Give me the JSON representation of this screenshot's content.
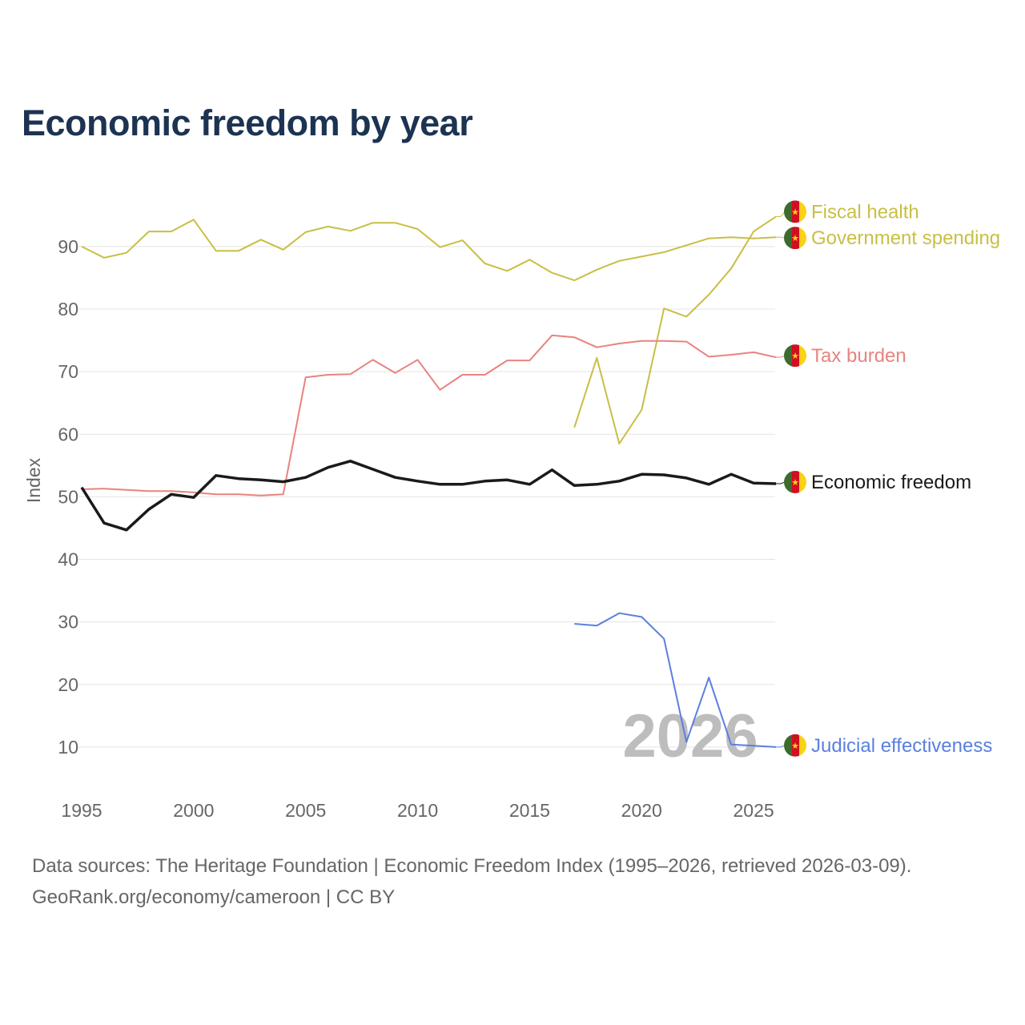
{
  "title": "Economic freedom by year",
  "watermark_year": "2026",
  "sources_line1": "Data sources: The Heritage Foundation | Economic Freedom Index (1995–2026, retrieved 2026-03-09).",
  "sources_line2": "GeoRank.org/economy/cameroon | CC BY",
  "chart_data": {
    "type": "line",
    "title": "Economic freedom by year",
    "xlabel": "",
    "ylabel": "Index",
    "xlim": [
      1995,
      2026
    ],
    "ylim": [
      0,
      98
    ],
    "xticks": [
      "1995",
      "2000",
      "2005",
      "2010",
      "2015",
      "2020",
      "2025"
    ],
    "yticks": [
      "10",
      "20",
      "30",
      "40",
      "50",
      "60",
      "70",
      "80",
      "90"
    ],
    "grid": true,
    "legend": "end-of-line labels right",
    "series": [
      {
        "name": "Government spending",
        "color": "#c8bf45",
        "width": 2,
        "start": 1995,
        "values": [
          90,
          88.2,
          89,
          92.4,
          92.4,
          94.3,
          89.3,
          89.3,
          91.1,
          89.5,
          92.3,
          93.2,
          92.5,
          93.8,
          93.8,
          92.8,
          89.9,
          91,
          87.3,
          86.1,
          87.9,
          85.8,
          84.6,
          86.3,
          87.7,
          88.4,
          89.1,
          90.2,
          91.3,
          91.5,
          91.3,
          91.5
        ]
      },
      {
        "name": "Fiscal health",
        "color": "#c8bf45",
        "width": 2,
        "start": 2017,
        "values": [
          61.1,
          72.2,
          58.5,
          63.9,
          80.1,
          78.8,
          82.3,
          86.5,
          92.4,
          94.8
        ]
      },
      {
        "name": "Tax burden",
        "color": "#e8837f",
        "width": 2,
        "start": 1995,
        "values": [
          51.2,
          51.3,
          51.1,
          50.9,
          50.9,
          50.7,
          50.4,
          50.4,
          50.2,
          50.4,
          69.1,
          69.5,
          69.6,
          71.9,
          69.8,
          71.9,
          67.1,
          69.5,
          69.5,
          71.8,
          71.8,
          75.8,
          75.5,
          73.9,
          74.5,
          74.9,
          74.9,
          74.8,
          72.4,
          72.7,
          73.1,
          72.3
        ]
      },
      {
        "name": "Economic freedom",
        "color": "#1a1a1a",
        "width": 3.5,
        "start": 1995,
        "values": [
          51.5,
          45.8,
          44.7,
          48,
          50.4,
          49.9,
          53.4,
          52.9,
          52.7,
          52.4,
          53.1,
          54.7,
          55.7,
          54.4,
          53.1,
          52.5,
          52,
          52,
          52.5,
          52.7,
          52,
          54.3,
          51.8,
          52,
          52.5,
          53.6,
          53.5,
          53,
          52,
          53.6,
          52.2,
          52.1
        ]
      },
      {
        "name": "Judicial effectiveness",
        "color": "#5b7fe0",
        "width": 2,
        "start": 2017,
        "values": [
          29.7,
          29.4,
          31.4,
          30.8,
          27.3,
          10.8,
          21.1,
          10.4,
          10.2,
          10
        ]
      }
    ]
  }
}
